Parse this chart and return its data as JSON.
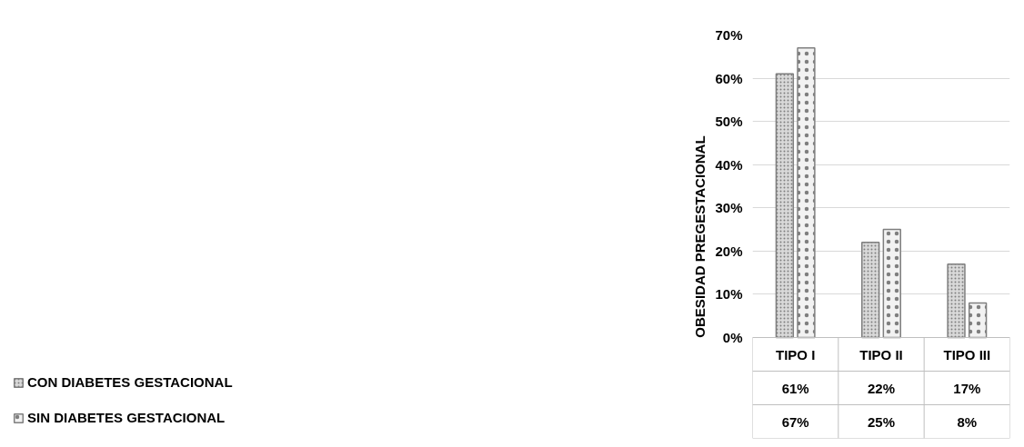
{
  "chart_data": {
    "type": "bar",
    "ylabel": "OBESIDAD PREGESTACIONAL",
    "categories": [
      "TIPO I",
      "TIPO II",
      "TIPO III"
    ],
    "series": [
      {
        "name": "CON DIABETES GESTACIONAL",
        "color": "#d9d9d9",
        "values": [
          61,
          22,
          17
        ],
        "value_labels": [
          "61%",
          "22%",
          "17%"
        ]
      },
      {
        "name": "SIN DIABETES GESTACIONAL",
        "color": "#f2f2f2",
        "values": [
          67,
          25,
          8
        ],
        "value_labels": [
          "67%",
          "25%",
          "8%"
        ]
      }
    ],
    "ylim": [
      0,
      70
    ],
    "yticks": [
      {
        "value": 0,
        "label": "0%"
      },
      {
        "value": 10,
        "label": "10%"
      },
      {
        "value": 20,
        "label": "20%"
      },
      {
        "value": 30,
        "label": "30%"
      },
      {
        "value": 40,
        "label": "40%"
      },
      {
        "value": 50,
        "label": "50%"
      },
      {
        "value": 60,
        "label": "60%"
      },
      {
        "value": 70,
        "label": "70%"
      }
    ],
    "grid": "y",
    "legend": "bottom left"
  }
}
